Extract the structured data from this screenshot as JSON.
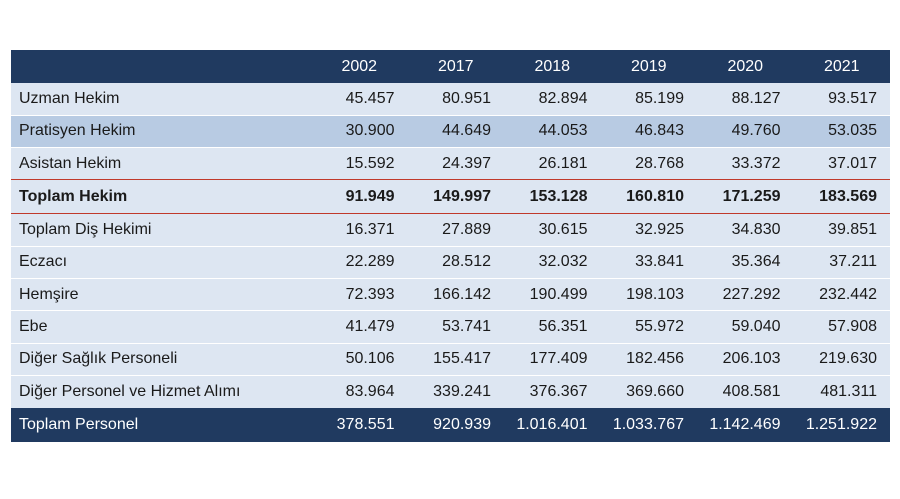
{
  "table": {
    "years": [
      "2002",
      "2017",
      "2018",
      "2019",
      "2020",
      "2021"
    ],
    "rows": [
      {
        "label": "Uzman Hekim",
        "values": [
          "45.457",
          "80.951",
          "82.894",
          "85.199",
          "88.127",
          "93.517"
        ]
      },
      {
        "label": "Pratisyen Hekim",
        "values": [
          "30.900",
          "44.649",
          "44.053",
          "46.843",
          "49.760",
          "53.035"
        ]
      },
      {
        "label": "Asistan Hekim",
        "values": [
          "15.592",
          "24.397",
          "26.181",
          "28.768",
          "33.372",
          "37.017"
        ]
      },
      {
        "label": "Toplam Hekim",
        "values": [
          "91.949",
          "149.997",
          "153.128",
          "160.810",
          "171.259",
          "183.569"
        ]
      },
      {
        "label": "Toplam Diş Hekimi",
        "values": [
          "16.371",
          "27.889",
          "30.615",
          "32.925",
          "34.830",
          "39.851"
        ]
      },
      {
        "label": "Eczacı",
        "values": [
          "22.289",
          "28.512",
          "32.032",
          "33.841",
          "35.364",
          "37.211"
        ]
      },
      {
        "label": "Hemşire",
        "values": [
          "72.393",
          "166.142",
          "190.499",
          "198.103",
          "227.292",
          "232.442"
        ]
      },
      {
        "label": "Ebe",
        "values": [
          "41.479",
          "53.741",
          "56.351",
          "55.972",
          "59.040",
          "57.908"
        ]
      },
      {
        "label": "Diğer Sağlık Personeli",
        "values": [
          "50.106",
          "155.417",
          "177.409",
          "182.456",
          "206.103",
          "219.630"
        ]
      },
      {
        "label": "Diğer Personel ve Hizmet Alımı",
        "values": [
          "83.964",
          "339.241",
          "376.367",
          "369.660",
          "408.581",
          "481.311"
        ]
      },
      {
        "label": "Toplam Personel",
        "values": [
          "378.551",
          "920.939",
          "1.016.401",
          "1.033.767",
          "1.142.469",
          "1.251.922"
        ]
      }
    ]
  },
  "colors": {
    "header_bg": "#203a60",
    "row_light": "#dde6f2",
    "row_dark": "#b8cbe3",
    "highlight_border": "#c0392b"
  }
}
